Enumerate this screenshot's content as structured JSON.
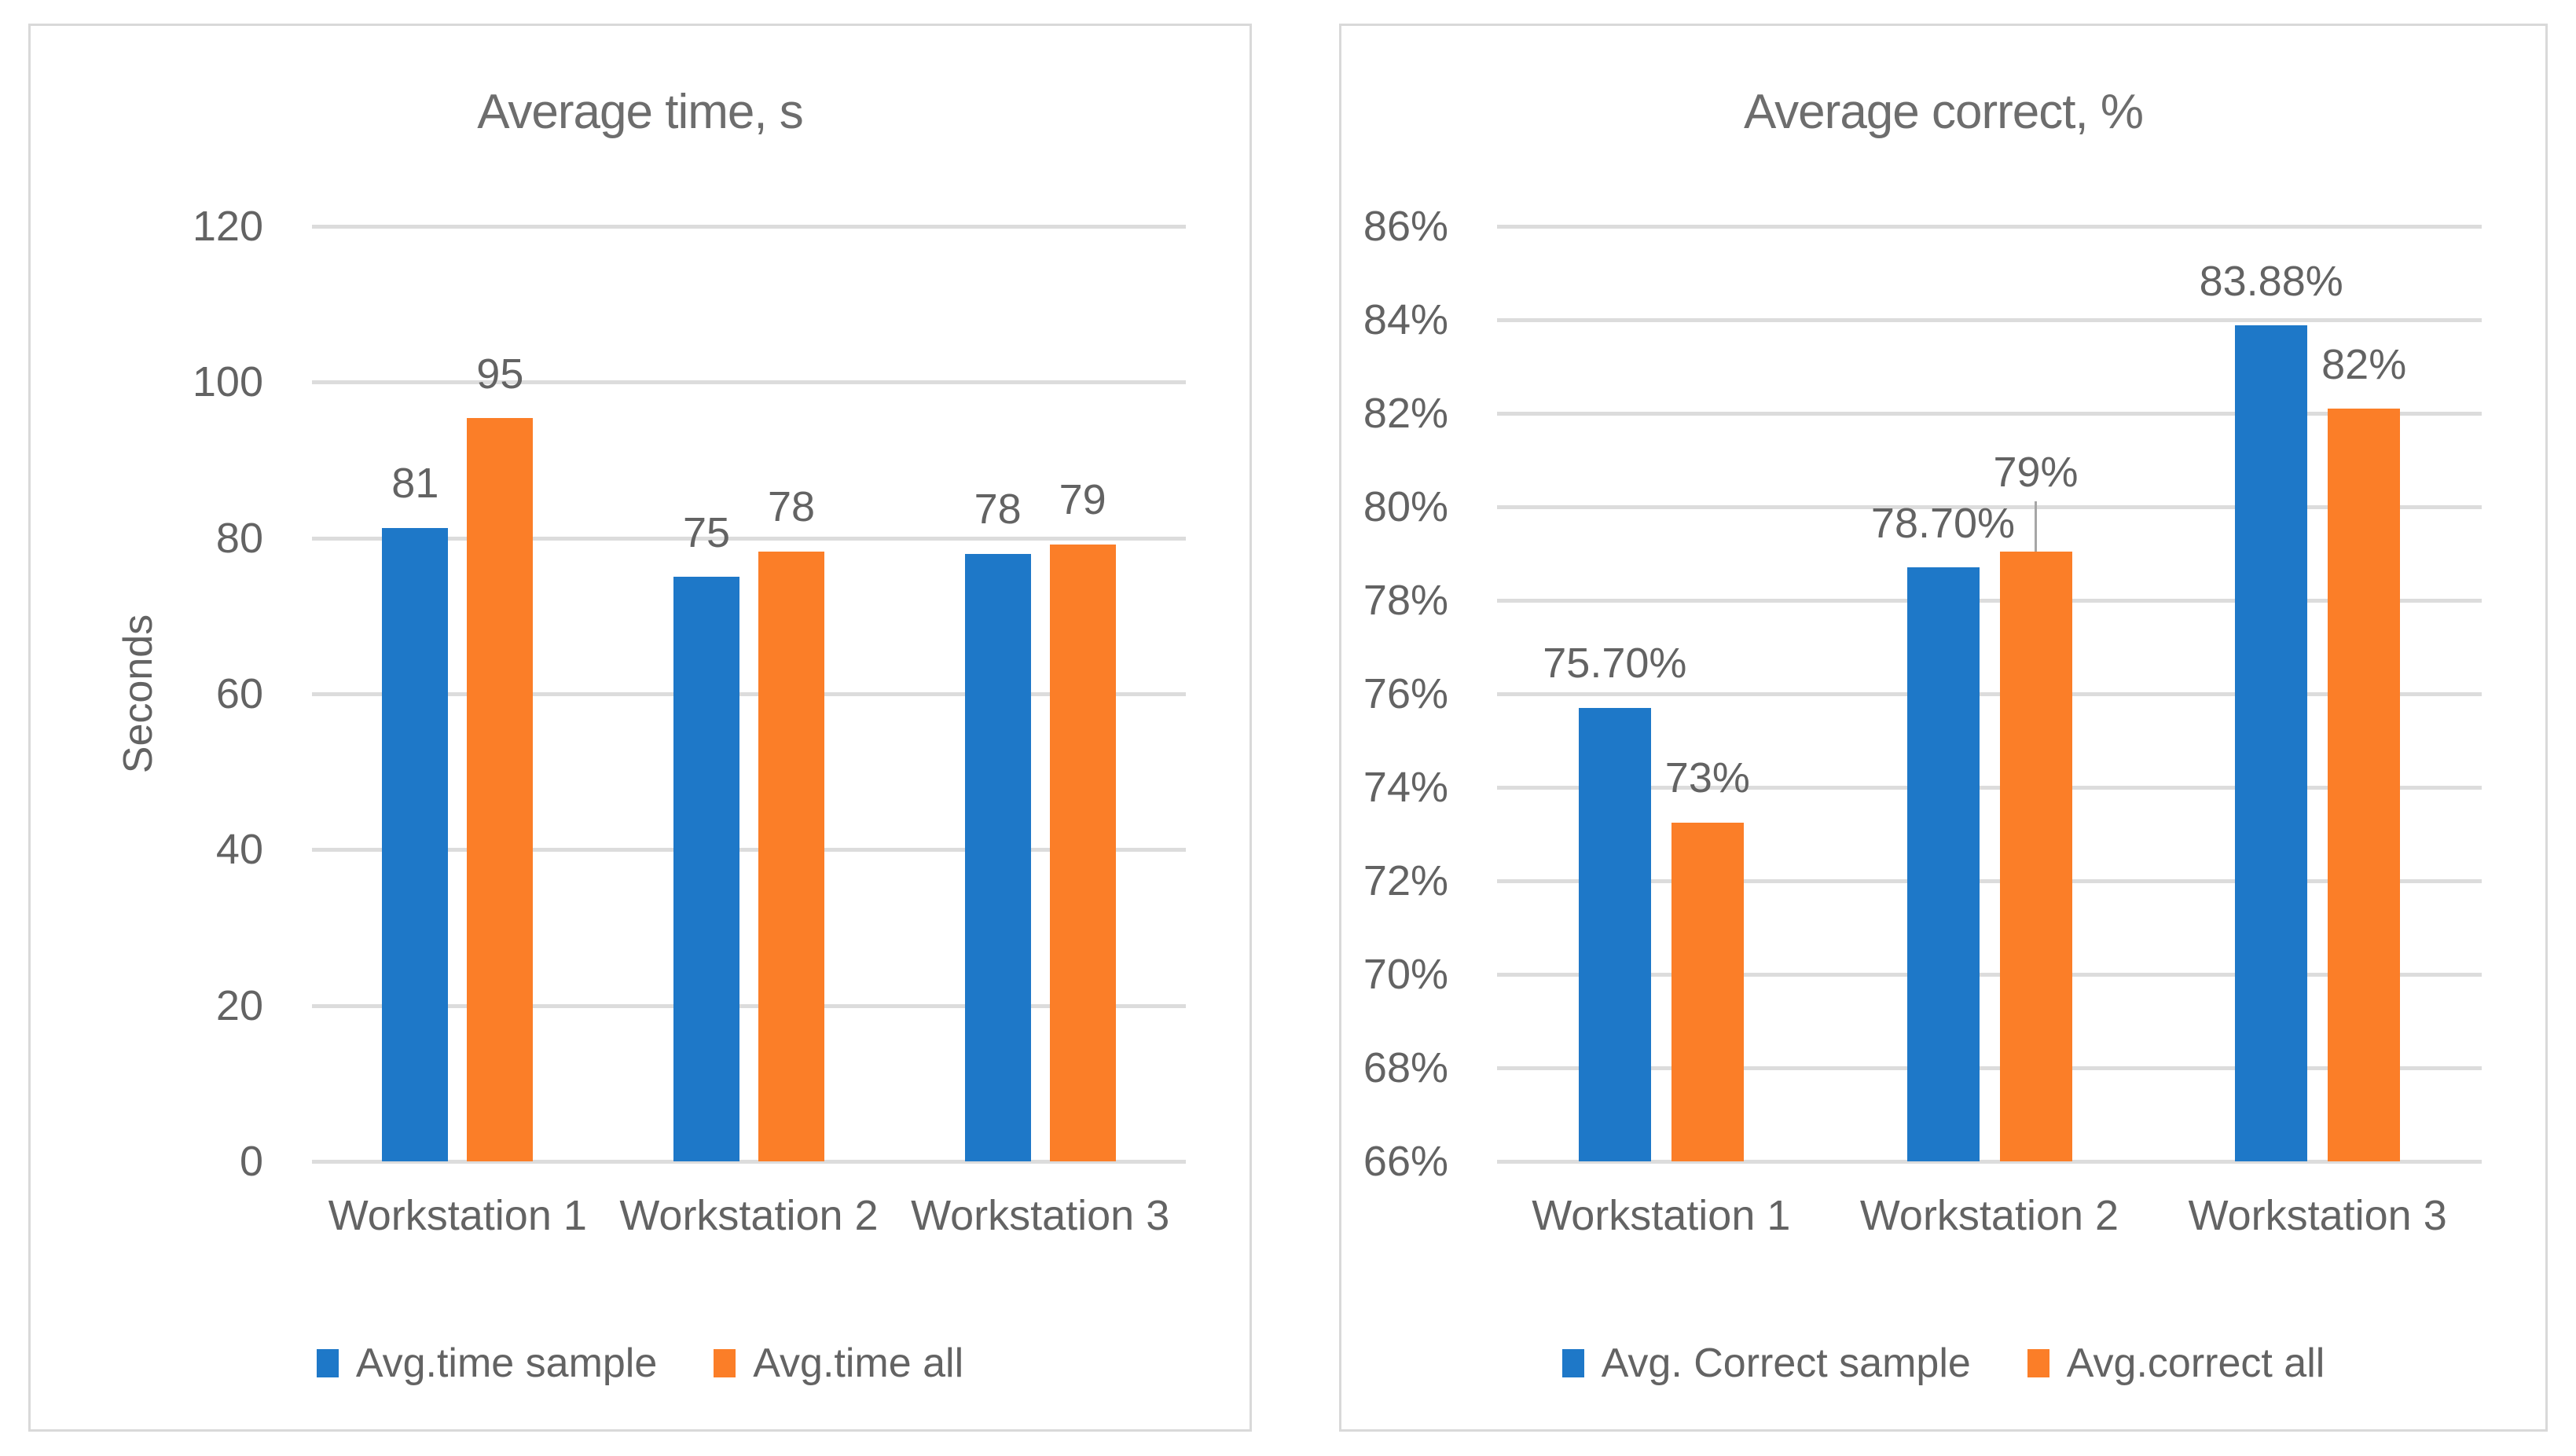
{
  "styles": {
    "background": "#ffffff",
    "card_border": "#d9d9d9",
    "grid_color": "#dcdcdc",
    "text_color": "#636363",
    "title_color": "#6d6d6d",
    "leader_color": "#a6a6a6"
  },
  "chart_data": [
    {
      "type": "bar",
      "title": "Average time, s",
      "xlabel": "",
      "ylabel": "Seconds",
      "ylim": [
        0,
        120
      ],
      "ytick_step": 20,
      "ytick_suffix": "",
      "grid": true,
      "legend_position": "bottom",
      "categories": [
        "Workstation 1",
        "Workstation 2",
        "Workstation 3"
      ],
      "series": [
        {
          "name": "Avg.time sample",
          "color": "#1E78C8",
          "values": [
            81.3,
            75,
            78
          ],
          "labels": [
            "81",
            "75",
            "78"
          ],
          "leader_lines": [
            false,
            false,
            false
          ]
        },
        {
          "name": "Avg.time all",
          "color": "#FB7E28",
          "values": [
            95.4,
            78.3,
            79.2
          ],
          "labels": [
            "95",
            "78",
            "79"
          ],
          "leader_lines": [
            false,
            false,
            false
          ]
        }
      ]
    },
    {
      "type": "bar",
      "title": "Average correct, %",
      "xlabel": "",
      "ylabel": "",
      "ylim": [
        66,
        86
      ],
      "ytick_step": 2,
      "ytick_suffix": "%",
      "grid": true,
      "legend_position": "bottom",
      "categories": [
        "Workstation 1",
        "Workstation 2",
        "Workstation 3"
      ],
      "series": [
        {
          "name": "Avg. Correct sample",
          "color": "#1E78C8",
          "values": [
            75.7,
            78.7,
            83.88
          ],
          "labels": [
            "75.70%",
            "78.70%",
            "83.88%"
          ],
          "leader_lines": [
            false,
            false,
            false
          ]
        },
        {
          "name": "Avg.correct all",
          "color": "#FB7E28",
          "values": [
            73.25,
            79.05,
            82.1
          ],
          "labels": [
            "73%",
            "79%",
            "82%"
          ],
          "leader_lines": [
            false,
            true,
            false
          ]
        }
      ]
    }
  ]
}
